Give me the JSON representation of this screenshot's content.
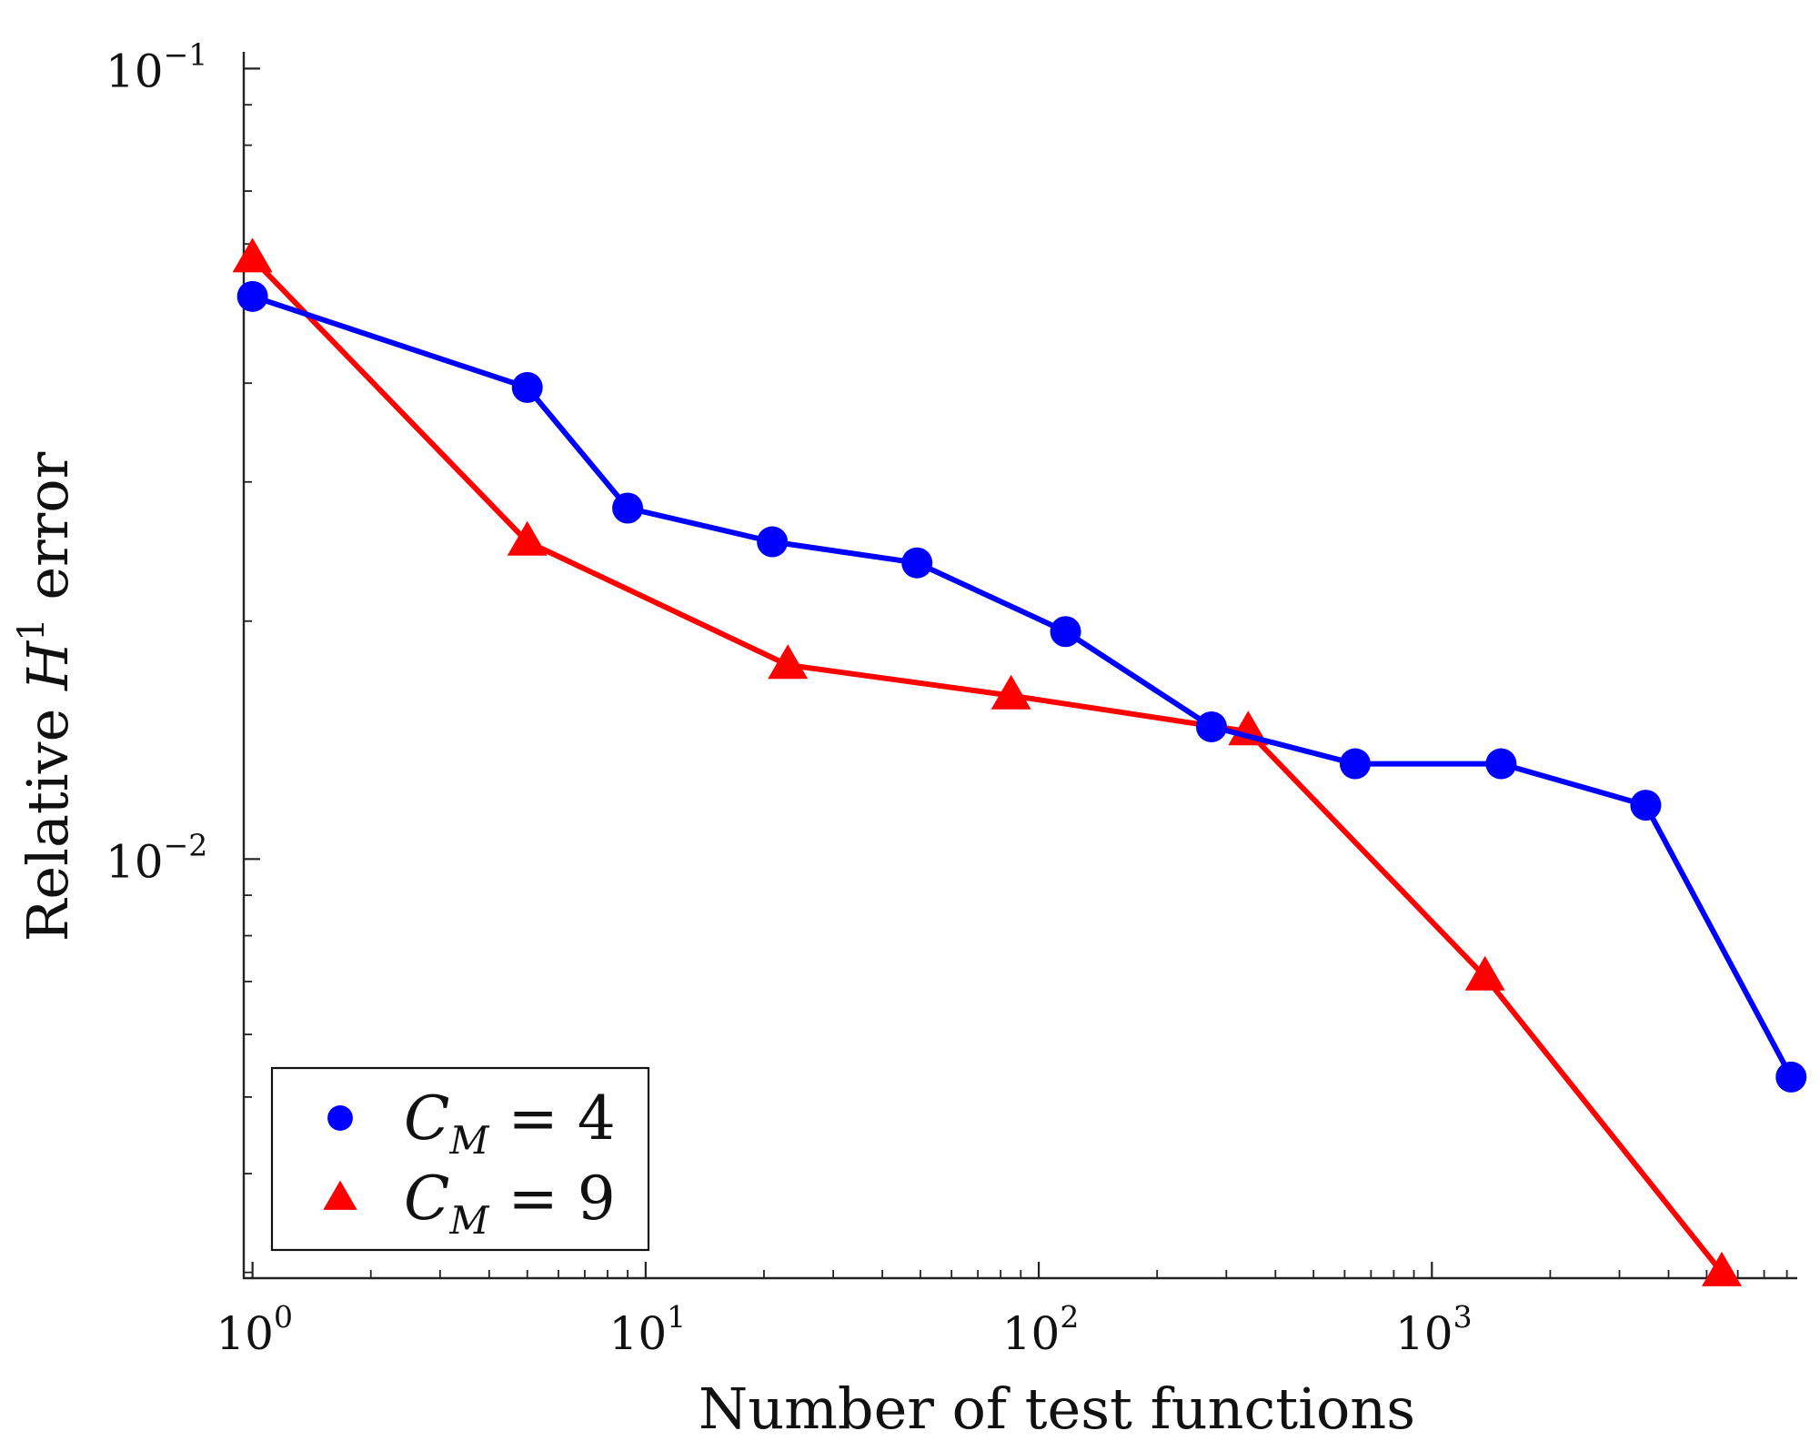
{
  "chart_data": {
    "type": "line",
    "xscale": "log",
    "yscale": "log",
    "xlabel": "Number of test functions",
    "ylabel_parts": {
      "pre": "Relative ",
      "var": "H",
      "sup": "1",
      "post": " error"
    },
    "xlim": [
      0.95,
      8500
    ],
    "ylim": [
      0.00295,
      0.105
    ],
    "xticks": [
      {
        "value": 1,
        "base": "10",
        "exp": "0"
      },
      {
        "value": 10,
        "base": "10",
        "exp": "1"
      },
      {
        "value": 100,
        "base": "10",
        "exp": "2"
      },
      {
        "value": 1000,
        "base": "10",
        "exp": "3"
      }
    ],
    "yticks": [
      {
        "value": 0.01,
        "base": "10",
        "exp": "−2"
      },
      {
        "value": 0.1,
        "base": "10",
        "exp": "−1"
      }
    ],
    "legend_position": "bottom-left",
    "series": [
      {
        "name": "C_M = 4",
        "legend": {
          "var": "C",
          "sub": "M",
          "rest": " = 4"
        },
        "color": "#0000ff",
        "marker": "circle",
        "x": [
          1,
          5,
          9,
          21,
          49,
          117,
          275,
          638,
          1500,
          3500,
          8200
        ],
        "y": [
          0.0515,
          0.0395,
          0.0278,
          0.0252,
          0.0237,
          0.0194,
          0.0147,
          0.0132,
          0.0132,
          0.0117,
          0.0053
        ]
      },
      {
        "name": "C_M = 9",
        "legend": {
          "var": "C",
          "sub": "M",
          "rest": " = 9"
        },
        "color": "#ff0000",
        "marker": "triangle",
        "x": [
          1,
          5,
          23,
          85,
          341,
          1365,
          5461
        ],
        "y": [
          0.0575,
          0.0252,
          0.0176,
          0.0161,
          0.0145,
          0.0071,
          0.003
        ]
      }
    ]
  }
}
